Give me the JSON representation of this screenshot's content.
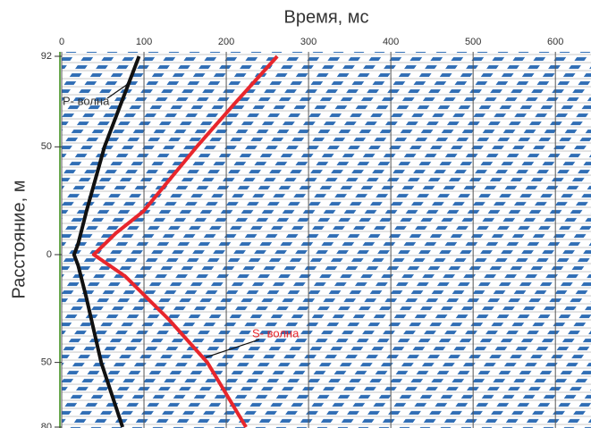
{
  "chart_data": {
    "type": "line",
    "xlabel": "Время, мс",
    "ylabel": "Расстояние, м",
    "xlim": [
      0,
      640
    ],
    "ylim": [
      -80,
      92
    ],
    "xticks": [
      0,
      100,
      200,
      300,
      400,
      500,
      600
    ],
    "yticks": [
      92,
      50,
      0,
      {
        "value": -50,
        "label": "50"
      },
      {
        "value": -80,
        "label": "80"
      }
    ],
    "series": [
      {
        "color": "#111111",
        "x": [
          94,
          72,
          52,
          30,
          20,
          15,
          20,
          30,
          48,
          74
        ],
        "values": [
          92,
          70,
          50,
          20,
          5,
          0,
          -5,
          -20,
          -50,
          -80
        ]
      },
      {
        "color": "#e8262c",
        "x": [
          262,
          210,
          164,
          99,
          66,
          39,
          77,
          130,
          177,
          224
        ],
        "values": [
          92,
          70,
          50,
          20,
          10,
          0,
          -10,
          -30,
          -50,
          -80
        ]
      }
    ],
    "annotations": [
      {
        "text": "P- волна",
        "color": "#333333"
      },
      {
        "text": "S- волна",
        "color": "#e8262c"
      }
    ]
  }
}
